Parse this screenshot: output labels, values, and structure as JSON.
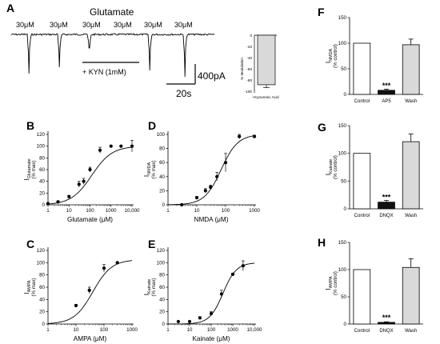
{
  "panel_A": {
    "letter": "A",
    "title": "Glutamate",
    "applications": [
      "30μM",
      "30μM",
      "30μM",
      "30μM",
      "30μM",
      "30μM"
    ],
    "drug_label": "+ KYN (1mM)",
    "scale_current": "400pA",
    "scale_time": "20s",
    "inset": {
      "ylabel": "% Modulation",
      "yticks": [
        "0",
        "-20",
        "-40",
        "-60",
        "-80",
        "-100"
      ],
      "category": "+Kynurenic Acid",
      "value": -86,
      "error": 5
    }
  },
  "chart_data": [
    {
      "panel": "B",
      "type": "scatter",
      "xscale": "log",
      "xlabel": "Glutamate (μM)",
      "ylabel_main": "I",
      "ylabel_sub": "Glutamate",
      "ylabel_unit": "(% max)",
      "xlim": [
        1,
        10000
      ],
      "ylim": [
        0,
        120
      ],
      "xticks": [
        "1",
        "10",
        "100",
        "1000",
        "10,000"
      ],
      "yticks": [
        "0",
        "20",
        "40",
        "60",
        "80",
        "100",
        "120"
      ],
      "x": [
        1,
        3,
        10,
        30,
        50,
        100,
        300,
        1000,
        3000,
        10000
      ],
      "y": [
        2,
        5,
        14,
        35,
        40,
        60,
        93,
        100,
        100,
        100
      ],
      "err": [
        1,
        2,
        2,
        5,
        5,
        4,
        5,
        0,
        0,
        10
      ],
      "fit": {
        "ec50": 120,
        "hill": 0.9,
        "top": 100
      }
    },
    {
      "panel": "D",
      "type": "scatter",
      "xscale": "log",
      "xlabel": "NMDA (μM)",
      "ylabel_main": "I",
      "ylabel_sub": "NMDA",
      "ylabel_unit": "(% max)",
      "xlim": [
        1,
        1000
      ],
      "ylim": [
        0,
        100
      ],
      "xticks": [
        "1",
        "10",
        "100",
        "1000"
      ],
      "yticks": [
        "0",
        "20",
        "40",
        "60",
        "80",
        "100"
      ],
      "x": [
        3,
        10,
        20,
        30,
        50,
        100,
        300,
        1000
      ],
      "y": [
        0,
        10,
        20,
        25,
        40,
        60,
        97,
        97
      ],
      "err": [
        0,
        2,
        3,
        3,
        6,
        13,
        3,
        2
      ],
      "fit": {
        "ec50": 70,
        "hill": 1.5,
        "top": 100
      }
    },
    {
      "panel": "C",
      "type": "scatter",
      "xscale": "log",
      "xlabel": "AMPA (μM)",
      "ylabel_main": "I",
      "ylabel_sub": "AMPA",
      "ylabel_unit": "(% max)",
      "xlim": [
        1,
        1000
      ],
      "ylim": [
        0,
        120
      ],
      "xticks": [
        "1",
        "10",
        "100",
        "1000"
      ],
      "yticks": [
        "0",
        "20",
        "40",
        "60",
        "80",
        "100",
        "120"
      ],
      "x": [
        10,
        30,
        100,
        300
      ],
      "y": [
        30,
        55,
        91,
        100
      ],
      "err": [
        2,
        5,
        6,
        1
      ],
      "fit": {
        "ec50": 40,
        "hill": 1.3,
        "top": 105
      }
    },
    {
      "panel": "E",
      "type": "scatter",
      "xscale": "log",
      "xlabel": "Kainate (μM)",
      "ylabel_main": "I",
      "ylabel_sub": "Kainate",
      "ylabel_unit": "(% max)",
      "xlim": [
        1,
        10000
      ],
      "ylim": [
        0,
        120
      ],
      "xticks": [
        "1",
        "10",
        "100",
        "1000",
        "10,000"
      ],
      "yticks": [
        "0",
        "20",
        "40",
        "60",
        "80",
        "100",
        "120"
      ],
      "x": [
        3,
        10,
        30,
        100,
        300,
        1000,
        3000
      ],
      "y": [
        4,
        4,
        10,
        17,
        49,
        81,
        95
      ],
      "err": [
        1,
        1,
        2,
        3,
        6,
        2,
        8
      ],
      "fit": {
        "ec50": 350,
        "hill": 1.4,
        "top": 100
      }
    },
    {
      "panel": "F",
      "type": "bar",
      "ylabel_main": "I",
      "ylabel_sub": "NMDA",
      "ylabel_unit": "(% control)",
      "categories": [
        "Control",
        "AP5",
        "Wash"
      ],
      "values": [
        100,
        8,
        97
      ],
      "errors": [
        0,
        2,
        11
      ],
      "colors": [
        "#ffffff",
        "#111111",
        "#d9d9d9"
      ],
      "ylim": [
        0,
        150
      ],
      "yticks": [
        "0",
        "50",
        "100",
        "150"
      ],
      "significance": "***"
    },
    {
      "panel": "G",
      "type": "bar",
      "ylabel_main": "I",
      "ylabel_sub": "Kainate",
      "ylabel_unit": "(% control)",
      "categories": [
        "Control",
        "DNQX",
        "Wash"
      ],
      "values": [
        100,
        12,
        121
      ],
      "errors": [
        0,
        3,
        14
      ],
      "colors": [
        "#ffffff",
        "#111111",
        "#d9d9d9"
      ],
      "ylim": [
        0,
        150
      ],
      "yticks": [
        "0",
        "50",
        "100",
        "150"
      ],
      "significance": "***"
    },
    {
      "panel": "H",
      "type": "bar",
      "ylabel_main": "I",
      "ylabel_sub": "AMPA",
      "ylabel_unit": "(% control)",
      "categories": [
        "Control",
        "DNQX",
        "Wash"
      ],
      "values": [
        100,
        3,
        104
      ],
      "errors": [
        0,
        1,
        16
      ],
      "colors": [
        "#ffffff",
        "#111111",
        "#d9d9d9"
      ],
      "ylim": [
        0,
        150
      ],
      "yticks": [
        "0",
        "50",
        "100",
        "150"
      ],
      "significance": "***"
    }
  ]
}
